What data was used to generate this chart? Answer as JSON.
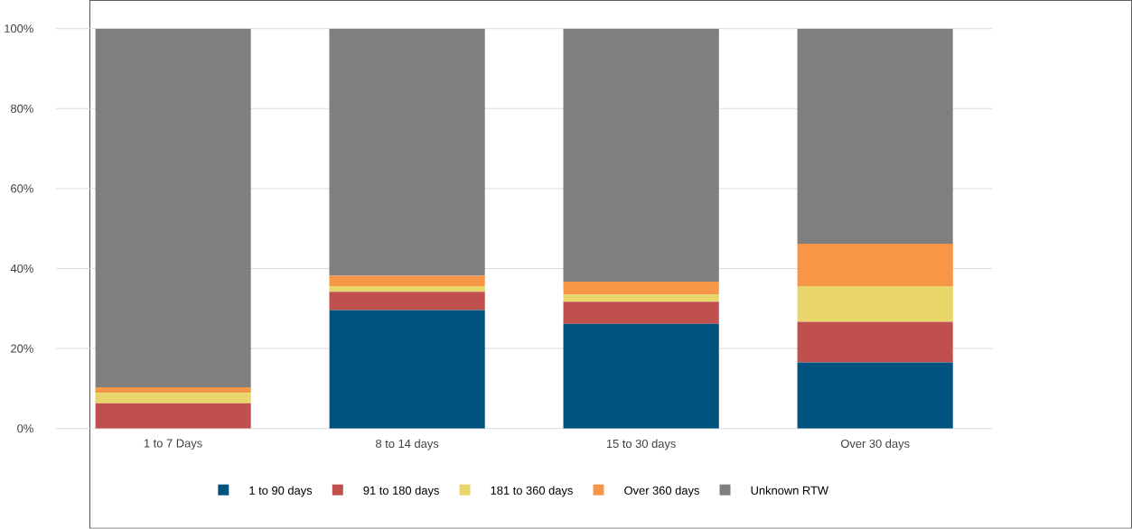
{
  "chart_data": {
    "type": "bar",
    "stacked": true,
    "categories": [
      "1 to 7 Days",
      "8 to 14 days",
      "15 to 30 days",
      "Over 30 days"
    ],
    "series": [
      {
        "name": "1 to 90 days",
        "color": "#00527f",
        "values": [
          0,
          29.6,
          26.2,
          16.5
        ]
      },
      {
        "name": "91 to 180 days",
        "color": "#c0504d",
        "values": [
          6.3,
          4.6,
          5.5,
          10.2
        ]
      },
      {
        "name": "181 to 360 days",
        "color": "#e9d66b",
        "values": [
          2.6,
          1.4,
          1.8,
          8.9
        ]
      },
      {
        "name": "Over 360 days",
        "color": "#f79646",
        "values": [
          1.4,
          2.6,
          3.2,
          10.6
        ]
      },
      {
        "name": "Unknown RTW",
        "color": "#7f7f7f",
        "values": [
          89.7,
          61.8,
          63.3,
          53.8
        ]
      }
    ],
    "ylim": [
      0,
      100
    ],
    "yticks": [
      {
        "value": 0,
        "label": "0%"
      },
      {
        "value": 20,
        "label": "20%"
      },
      {
        "value": 40,
        "label": "40%"
      },
      {
        "value": 60,
        "label": "60%"
      },
      {
        "value": 80,
        "label": "80%"
      },
      {
        "value": 100,
        "label": "100%"
      }
    ],
    "grid": "y",
    "legend": "bottom"
  }
}
